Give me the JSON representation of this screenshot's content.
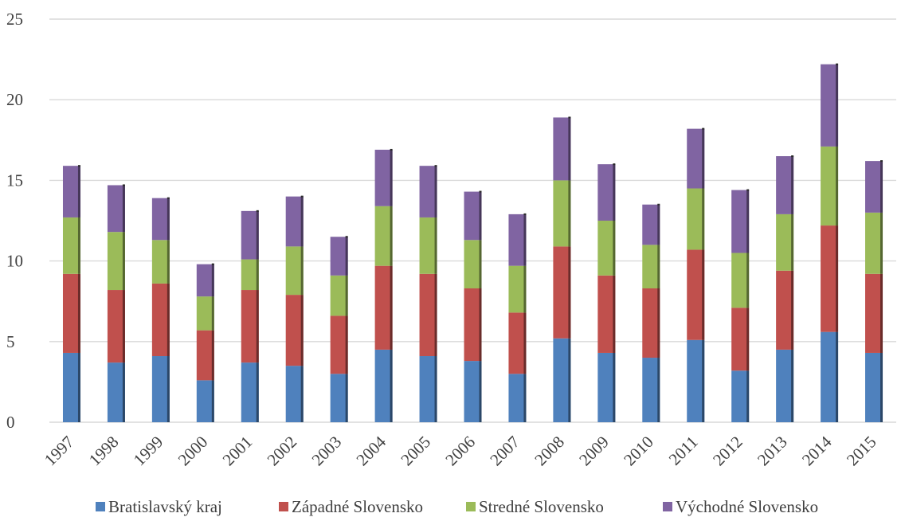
{
  "chart_data": {
    "type": "bar",
    "stacked": true,
    "title": "",
    "xlabel": "",
    "ylabel": "",
    "ylim": [
      0,
      25
    ],
    "yticks": [
      0,
      5,
      10,
      15,
      20,
      25
    ],
    "grid": true,
    "legend_position": "bottom",
    "categories": [
      "1997",
      "1998",
      "1999",
      "2000",
      "2001",
      "2002",
      "2003",
      "2004",
      "2005",
      "2006",
      "2007",
      "2008",
      "2009",
      "2010",
      "2011",
      "2012",
      "2013",
      "2014",
      "2015"
    ],
    "series": [
      {
        "name": "Bratislavský kraj",
        "color": "#4f81bd",
        "values": [
          4.3,
          3.7,
          4.1,
          2.6,
          3.7,
          3.5,
          3.0,
          4.5,
          4.1,
          3.8,
          3.0,
          5.2,
          4.3,
          4.0,
          5.1,
          3.2,
          4.5,
          5.6,
          4.3
        ]
      },
      {
        "name": "Západné Slovensko",
        "color": "#c0504d",
        "values": [
          4.9,
          4.5,
          4.5,
          3.1,
          4.5,
          4.4,
          3.6,
          5.2,
          5.1,
          4.5,
          3.8,
          5.7,
          4.8,
          4.3,
          5.6,
          3.9,
          4.9,
          6.6,
          4.9
        ]
      },
      {
        "name": "Stredné Slovensko",
        "color": "#9bbb59",
        "values": [
          3.5,
          3.6,
          2.7,
          2.1,
          1.9,
          3.0,
          2.5,
          3.7,
          3.5,
          3.0,
          2.9,
          4.1,
          3.4,
          2.7,
          3.8,
          3.4,
          3.5,
          4.9,
          3.8
        ]
      },
      {
        "name": "Východné Slovensko",
        "color": "#8064a2",
        "values": [
          3.2,
          2.9,
          2.6,
          2.0,
          3.0,
          3.1,
          2.4,
          3.5,
          3.2,
          3.0,
          3.2,
          3.9,
          3.5,
          2.5,
          3.7,
          3.9,
          3.6,
          5.1,
          3.2
        ]
      }
    ]
  }
}
